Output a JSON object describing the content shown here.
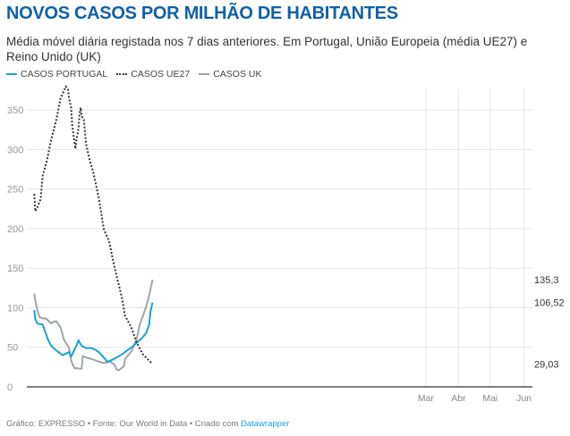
{
  "header": {
    "title": "NOVOS CASOS POR MILHÃO DE HABITANTES",
    "subtitle": "Média móvel diária registada nos 7 dias anteriores. Em Portugal, União Europeia (média UE27) e Reino Unido (UK)"
  },
  "footer": {
    "text": "Gráfico: EXPRESSO • Fonte: Our World in Data • Criado com ",
    "link": "Datawrapper"
  },
  "chart_data": {
    "type": "line",
    "title": "NOVOS CASOS POR MILHÃO DE HABITANTES",
    "xlabel": "",
    "ylabel": "",
    "x_unit": "days from series start",
    "xlim": [
      -7,
      472
    ],
    "ylim": [
      0,
      375
    ],
    "yticks": [
      0,
      50,
      100,
      150,
      200,
      250,
      300,
      350
    ],
    "xticks": [
      {
        "label": "Mar",
        "x": 371
      },
      {
        "label": "Abr",
        "x": 402
      },
      {
        "label": "Mai",
        "x": 432
      },
      {
        "label": "Jun",
        "x": 464
      }
    ],
    "grid": true,
    "legend": "top-left",
    "series": [
      {
        "name": "CASOS PORTUGAL",
        "color": "#1aa0d8",
        "style": "solid",
        "end_label": "106,52",
        "x": [
          0,
          1,
          3,
          7,
          8,
          10,
          13,
          16,
          20,
          24,
          27,
          30,
          33,
          35,
          38,
          40,
          42,
          43,
          45,
          49,
          54,
          58,
          62,
          66,
          69,
          72,
          78,
          83,
          89,
          94,
          99,
          103,
          106,
          109,
          110,
          112
        ],
        "y": [
          97,
          86,
          80,
          79,
          79,
          71,
          60,
          52,
          47,
          43,
          40,
          42,
          44,
          38,
          47,
          52,
          59,
          56,
          52,
          49,
          49,
          47,
          43,
          37,
          32,
          33,
          37,
          41,
          47,
          52,
          58,
          63,
          68,
          79,
          94,
          106.52
        ]
      },
      {
        "name": "CASOS UE27",
        "color": "#333344",
        "style": "dotted",
        "end_label": "29,03",
        "x": [
          0,
          1,
          3,
          6,
          8,
          12,
          16,
          21,
          25,
          28,
          30,
          32,
          33,
          35,
          36,
          38,
          39,
          40,
          42,
          43,
          44,
          45,
          47,
          48,
          49,
          52,
          56,
          61,
          66,
          71,
          75,
          79,
          83,
          86,
          92,
          97,
          103,
          112
        ],
        "y": [
          244,
          222,
          227,
          237,
          267,
          286,
          312,
          338,
          365,
          374,
          380,
          376,
          365,
          353,
          331,
          310,
          301,
          312,
          327,
          346,
          353,
          342,
          338,
          323,
          308,
          289,
          271,
          240,
          199,
          184,
          158,
          135,
          113,
          90,
          75,
          56,
          41,
          29.03
        ]
      },
      {
        "name": "CASOS UK",
        "color": "#a0a4a8",
        "style": "solid",
        "end_label": "135,3",
        "x": [
          0,
          1,
          3,
          5,
          10,
          11,
          16,
          18,
          21,
          25,
          28,
          33,
          35,
          38,
          39,
          40,
          42,
          45,
          46,
          49,
          55,
          61,
          66,
          72,
          76,
          78,
          80,
          85,
          86,
          92,
          97,
          100,
          106,
          109,
          112
        ],
        "y": [
          118,
          109,
          97,
          88,
          86,
          87,
          80,
          82,
          83,
          75,
          60,
          49,
          33,
          24,
          23,
          24,
          23,
          23,
          39,
          37,
          35,
          32,
          30,
          32,
          28,
          22,
          21,
          26,
          35,
          45,
          60,
          79,
          101,
          116,
          135.3
        ]
      }
    ]
  }
}
